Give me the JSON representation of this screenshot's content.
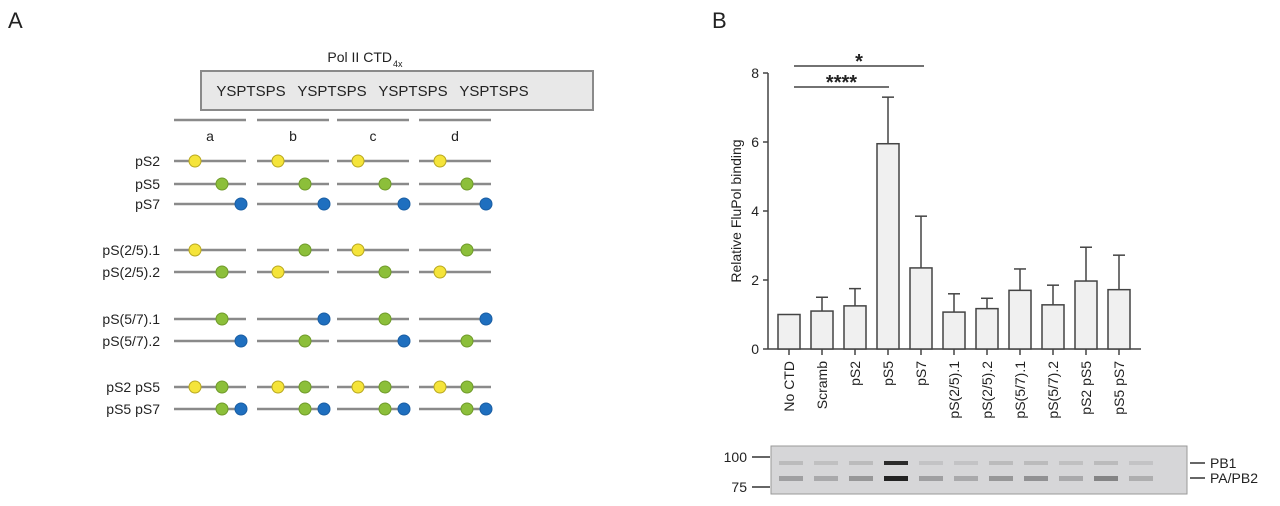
{
  "panels": {
    "a_label": "A",
    "b_label": "B"
  },
  "panel_a": {
    "title": "Pol II CTD",
    "title_subscript": "4x",
    "repeats": [
      "YSPTSPS",
      "YSPTSPS",
      "YSPTSPS",
      "YSPTSPS"
    ],
    "columns": [
      "a",
      "b",
      "c",
      "d"
    ],
    "colors": {
      "Y": "#f5e43a",
      "G": "#8cbf3a",
      "B": "#1f6fbf",
      "line": "#8a8a8a"
    },
    "legend_marks": {
      "Y": "pS2",
      "G": "pS5",
      "B": "pS7"
    },
    "rows": [
      {
        "label": "pS2",
        "marks": [
          [
            "Y"
          ],
          [
            "Y"
          ],
          [
            "Y"
          ],
          [
            "Y"
          ]
        ]
      },
      {
        "label": "pS5",
        "marks": [
          [
            "G"
          ],
          [
            "G"
          ],
          [
            "G"
          ],
          [
            "G"
          ]
        ]
      },
      {
        "label": "pS7",
        "marks": [
          [
            "B"
          ],
          [
            "B"
          ],
          [
            "B"
          ],
          [
            "B"
          ]
        ]
      },
      {
        "label": "pS(2/5).1",
        "marks": [
          [
            "Y"
          ],
          [
            "G"
          ],
          [
            "Y"
          ],
          [
            "G"
          ]
        ]
      },
      {
        "label": "pS(2/5).2",
        "marks": [
          [
            "G"
          ],
          [
            "Y"
          ],
          [
            "G"
          ],
          [
            "Y"
          ]
        ]
      },
      {
        "label": "pS(5/7).1",
        "marks": [
          [
            "G"
          ],
          [
            "B"
          ],
          [
            "G"
          ],
          [
            "B"
          ]
        ]
      },
      {
        "label": "pS(5/7).2",
        "marks": [
          [
            "B"
          ],
          [
            "G"
          ],
          [
            "B"
          ],
          [
            "G"
          ]
        ]
      },
      {
        "label": "pS2 pS5",
        "marks": [
          [
            "Y",
            "G"
          ],
          [
            "Y",
            "G"
          ],
          [
            "Y",
            "G"
          ],
          [
            "Y",
            "G"
          ]
        ]
      },
      {
        "label": "pS5 pS7",
        "marks": [
          [
            "G",
            "B"
          ],
          [
            "G",
            "B"
          ],
          [
            "G",
            "B"
          ],
          [
            "G",
            "B"
          ]
        ]
      }
    ]
  },
  "chart_data": {
    "type": "bar",
    "title": "",
    "xlabel": "",
    "ylabel": "Relative FluPol binding",
    "ylim": [
      0,
      8
    ],
    "yticks": [
      0,
      2,
      4,
      6,
      8
    ],
    "grid": false,
    "categories": [
      "No CTD",
      "Scramb",
      "pS2",
      "pS5",
      "pS7",
      "pS(2/5).1",
      "pS(2/5).2",
      "pS(5/7).1",
      "pS(5/7).2",
      "pS2 pS5",
      "pS5 pS7"
    ],
    "values": [
      1.0,
      1.1,
      1.25,
      5.95,
      2.35,
      1.07,
      1.17,
      1.7,
      1.28,
      1.97,
      1.72
    ],
    "error_upper": [
      1.0,
      1.5,
      1.75,
      7.3,
      3.85,
      1.6,
      1.47,
      2.32,
      1.85,
      2.95,
      2.72
    ],
    "bar_color": "#f0f0f0",
    "significance": [
      {
        "from": "No CTD",
        "to": "pS5",
        "label": "****"
      },
      {
        "from": "No CTD",
        "to": "pS7",
        "label": "*"
      }
    ]
  },
  "gel": {
    "markers": [
      "100",
      "75"
    ],
    "bands": [
      "PB1",
      "PA/PB2"
    ],
    "pb1_intensity": [
      0.15,
      0.12,
      0.15,
      0.95,
      0.1,
      0.1,
      0.15,
      0.15,
      0.12,
      0.15,
      0.1
    ],
    "papb2_intensity": [
      0.3,
      0.25,
      0.35,
      1.0,
      0.3,
      0.25,
      0.35,
      0.38,
      0.25,
      0.45,
      0.22
    ]
  }
}
